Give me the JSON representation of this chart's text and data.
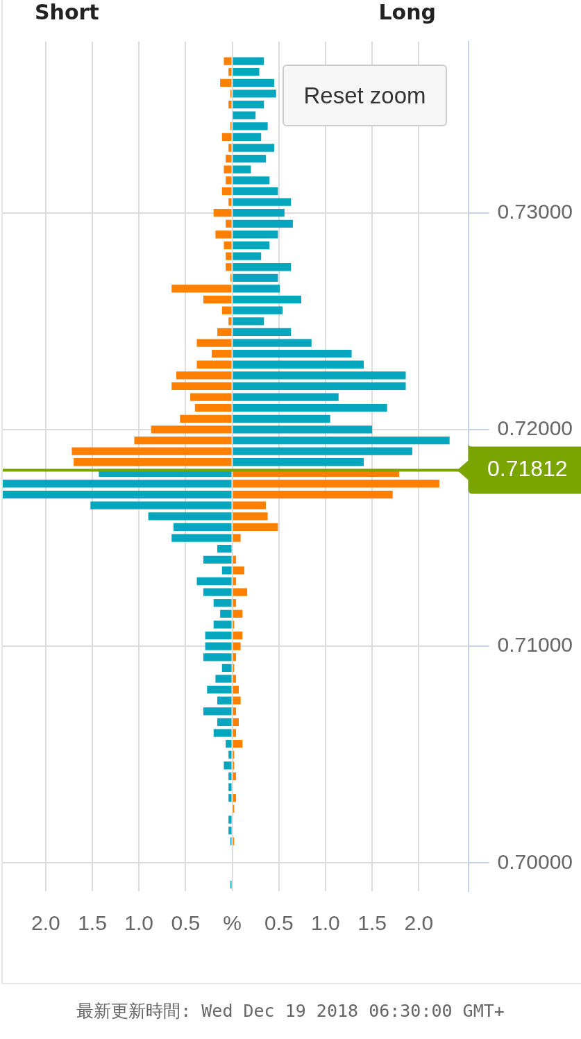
{
  "chart_data": {
    "type": "bar",
    "orientation": "horizontal",
    "x": [
      0.737,
      0.7365,
      0.736,
      0.7355,
      0.735,
      0.7345,
      0.734,
      0.7335,
      0.733,
      0.7325,
      0.732,
      0.7315,
      0.731,
      0.7305,
      0.73,
      0.7295,
      0.729,
      0.7285,
      0.728,
      0.7275,
      0.727,
      0.7265,
      0.726,
      0.7255,
      0.725,
      0.7245,
      0.724,
      0.7235,
      0.723,
      0.7225,
      0.722,
      0.7215,
      0.721,
      0.7205,
      0.72,
      0.7195,
      0.719,
      0.7185,
      0.718,
      0.7175,
      0.717,
      0.7165,
      0.716,
      0.7155,
      0.715,
      0.7145,
      0.714,
      0.7135,
      0.713,
      0.7125,
      0.712,
      0.7115,
      0.711,
      0.7105,
      0.71,
      0.7095,
      0.709,
      0.7085,
      0.708,
      0.7075,
      0.707,
      0.7065,
      0.706,
      0.7055,
      0.705,
      0.7045,
      0.704,
      0.7035,
      0.703,
      0.7025,
      0.702,
      0.7015,
      0.701,
      0.7005,
      0.7,
      0.6995,
      0.699
    ],
    "series": [
      {
        "color": "#ff8000",
        "values": [
          -0.09,
          -0.04,
          -0.13,
          -0.02,
          -0.04,
          null,
          -0.02,
          -0.11,
          -0.04,
          -0.07,
          -0.09,
          -0.07,
          -0.11,
          -0.04,
          -0.2,
          -0.07,
          -0.18,
          -0.09,
          -0.07,
          -0.07,
          -0.02,
          -0.65,
          -0.31,
          -0.11,
          -0.04,
          -0.16,
          -0.38,
          -0.22,
          -0.38,
          -0.6,
          -0.65,
          -0.45,
          -0.4,
          -0.56,
          -0.87,
          -1.05,
          -1.72,
          -1.7,
          1.79,
          2.22,
          1.72,
          0.36,
          0.38,
          0.49,
          0.09,
          null,
          0.04,
          0.13,
          0.04,
          0.16,
          0.04,
          0.11,
          0.02,
          0.11,
          0.09,
          0.04,
          0.02,
          0.04,
          0.07,
          0.09,
          0.04,
          0.07,
          0.04,
          0.11,
          0.02,
          0.02,
          0.04,
          null,
          0.04,
          0.02,
          null,
          null,
          0.02,
          null,
          null,
          null,
          null
        ]
      },
      {
        "color": "#06a6be",
        "values": [
          0.34,
          0.29,
          0.45,
          0.47,
          0.34,
          0.25,
          0.38,
          0.31,
          0.45,
          0.36,
          0.2,
          0.4,
          0.49,
          0.63,
          0.56,
          0.65,
          0.49,
          0.4,
          0.31,
          0.63,
          0.49,
          0.51,
          0.74,
          0.54,
          0.34,
          0.63,
          0.85,
          1.28,
          1.41,
          1.86,
          1.86,
          1.14,
          1.66,
          1.05,
          1.5,
          2.33,
          1.93,
          1.41,
          -1.43,
          -2.46,
          -2.46,
          -1.52,
          -0.9,
          -0.63,
          -0.65,
          -0.16,
          -0.31,
          -0.11,
          -0.38,
          -0.31,
          -0.2,
          -0.13,
          -0.2,
          -0.29,
          -0.29,
          -0.31,
          -0.11,
          -0.18,
          -0.27,
          -0.16,
          -0.31,
          -0.16,
          -0.2,
          -0.07,
          -0.04,
          -0.09,
          -0.04,
          -0.04,
          -0.04,
          null,
          -0.04,
          -0.04,
          -0.02,
          null,
          null,
          null,
          -0.02
        ]
      }
    ],
    "xlim": [
      -2.46,
      2.53
    ],
    "xticks": [
      {
        "value": -2,
        "label": "2.0"
      },
      {
        "value": -1.5,
        "label": "1.5"
      },
      {
        "value": -1,
        "label": "1.0"
      },
      {
        "value": -0.5,
        "label": "0.5"
      },
      {
        "value": 0,
        "label": "%"
      },
      0.5,
      {
        "value": 1,
        "label": "1.0"
      },
      1.5,
      {
        "value": 2,
        "label": "2.0"
      }
    ],
    "ylim": [
      0.6987,
      0.7379
    ],
    "yticks": [
      {
        "value": 0.7,
        "label": "0.70000"
      },
      {
        "value": 0.71,
        "label": "0.71000"
      },
      {
        "value": 0.72,
        "label": "0.72000"
      },
      {
        "value": 0.73,
        "label": "0.73000"
      }
    ],
    "grid": true,
    "stacked": true,
    "ref_lines": [
      {
        "axis": "y",
        "value": 0.71812,
        "label": "0.71812",
        "color": "#7aa400"
      }
    ],
    "annotations": [
      "Short",
      "Long",
      "Reset zoom",
      "最新更新時間: Wed Dec 19 2018 06:30:00 GMT+"
    ]
  }
}
